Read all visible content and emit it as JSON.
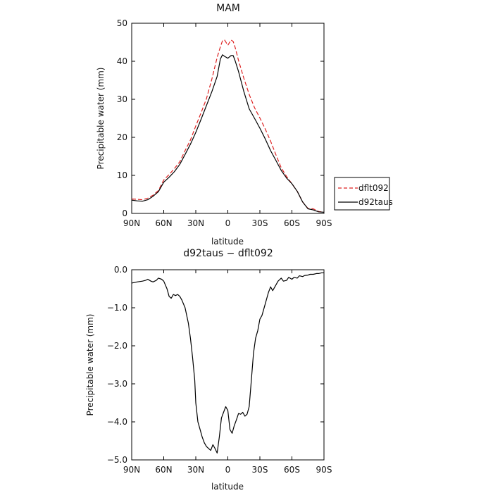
{
  "chart_data": [
    {
      "type": "line",
      "title": "MAM",
      "xlabel": "latitude",
      "ylabel": "Precipitable water (mm)",
      "x_tick_labels": [
        "90N",
        "60N",
        "30N",
        "0",
        "30S",
        "60S",
        "90S"
      ],
      "x_ticks": [
        90,
        60,
        30,
        0,
        -30,
        -60,
        -90
      ],
      "xlim": [
        90,
        -90
      ],
      "ylim": [
        0,
        50
      ],
      "y_ticks": [
        0,
        10,
        20,
        30,
        40,
        50
      ],
      "y_tick_labels": [
        "0",
        "10",
        "20",
        "30",
        "40",
        "50"
      ],
      "legend": "right-bottom",
      "series": [
        {
          "name": "dflt092",
          "color": "#dd2222",
          "dash": "dashed",
          "x": [
            90,
            85,
            80,
            75,
            70,
            65,
            60,
            55,
            50,
            45,
            40,
            35,
            30,
            25,
            20,
            15,
            10,
            7,
            5,
            3,
            0,
            -3,
            -5,
            -7,
            -10,
            -15,
            -20,
            -25,
            -30,
            -35,
            -40,
            -45,
            -50,
            -55,
            -60,
            -65,
            -70,
            -75,
            -80,
            -85,
            -90
          ],
          "values": [
            3.8,
            3.7,
            3.6,
            4.0,
            4.8,
            6.0,
            8.8,
            10.2,
            11.8,
            13.6,
            16.5,
            19.3,
            23.0,
            26.5,
            30.2,
            35.3,
            41.0,
            43.8,
            45.4,
            45.6,
            44.2,
            45.6,
            45.2,
            43.5,
            40.2,
            35.5,
            31.3,
            27.8,
            25.1,
            22.2,
            19.0,
            15.4,
            12.0,
            9.7,
            7.8,
            5.8,
            3.0,
            1.3,
            1.2,
            0.5,
            0.3
          ]
        },
        {
          "name": "d92taus",
          "color": "#000000",
          "dash": "solid",
          "x": [
            90,
            85,
            80,
            75,
            70,
            65,
            60,
            55,
            50,
            45,
            40,
            35,
            30,
            25,
            20,
            15,
            10,
            7,
            5,
            3,
            0,
            -3,
            -5,
            -7,
            -10,
            -15,
            -20,
            -25,
            -30,
            -35,
            -40,
            -45,
            -50,
            -55,
            -60,
            -65,
            -70,
            -75,
            -80,
            -85,
            -90
          ],
          "values": [
            3.5,
            3.3,
            3.2,
            3.6,
            4.5,
            5.7,
            8.2,
            9.5,
            11.0,
            12.9,
            15.5,
            18.2,
            21.3,
            24.8,
            28.4,
            32.0,
            36.0,
            40.6,
            41.7,
            41.3,
            40.8,
            41.5,
            41.5,
            40.0,
            37.3,
            32.0,
            27.5,
            25.0,
            22.4,
            19.6,
            16.5,
            13.9,
            11.3,
            9.3,
            7.8,
            5.8,
            3.0,
            1.2,
            0.9,
            0.4,
            0.3
          ]
        }
      ]
    },
    {
      "type": "line",
      "title": "d92taus − dflt092",
      "xlabel": "latitude",
      "ylabel": "Precipitable water (mm)",
      "x_tick_labels": [
        "90N",
        "60N",
        "30N",
        "0",
        "30S",
        "60S",
        "90S"
      ],
      "x_ticks": [
        90,
        60,
        30,
        0,
        -30,
        -60,
        -90
      ],
      "xlim": [
        90,
        -90
      ],
      "ylim": [
        -5.0,
        0.0
      ],
      "y_ticks": [
        0,
        -1,
        -2,
        -3,
        -4,
        -5
      ],
      "y_tick_labels": [
        "0.0",
        "−1.0",
        "−2.0",
        "−3.0",
        "−4.0",
        "−5.0"
      ],
      "series": [
        {
          "color": "#000000",
          "dash": "solid",
          "x": [
            90,
            85,
            80,
            77,
            75,
            72,
            70,
            67,
            65,
            62,
            60,
            57,
            55,
            53,
            51,
            49,
            47,
            45,
            43,
            40,
            37,
            35,
            33,
            31,
            30,
            28,
            26,
            24,
            22,
            20,
            18,
            16,
            14,
            12,
            10,
            8,
            6,
            4,
            2,
            0,
            -2,
            -4,
            -6,
            -8,
            -10,
            -12,
            -14,
            -16,
            -18,
            -20,
            -22,
            -24,
            -26,
            -28,
            -30,
            -32,
            -35,
            -38,
            -40,
            -42,
            -45,
            -47,
            -50,
            -52,
            -55,
            -57,
            -60,
            -62,
            -65,
            -67,
            -70,
            -72,
            -75,
            -77,
            -80,
            -83,
            -85,
            -88,
            -90
          ],
          "values": [
            -0.35,
            -0.32,
            -0.3,
            -0.28,
            -0.25,
            -0.3,
            -0.32,
            -0.28,
            -0.22,
            -0.25,
            -0.3,
            -0.5,
            -0.7,
            -0.75,
            -0.65,
            -0.68,
            -0.65,
            -0.7,
            -0.8,
            -1.0,
            -1.4,
            -1.8,
            -2.3,
            -2.9,
            -3.5,
            -4.0,
            -4.2,
            -4.4,
            -4.55,
            -4.65,
            -4.7,
            -4.75,
            -4.6,
            -4.7,
            -4.82,
            -4.4,
            -3.9,
            -3.75,
            -3.6,
            -3.7,
            -4.2,
            -4.3,
            -4.1,
            -3.95,
            -3.78,
            -3.8,
            -3.75,
            -3.85,
            -3.8,
            -3.6,
            -2.9,
            -2.2,
            -1.8,
            -1.6,
            -1.3,
            -1.2,
            -0.9,
            -0.6,
            -0.45,
            -0.55,
            -0.4,
            -0.3,
            -0.22,
            -0.3,
            -0.28,
            -0.2,
            -0.25,
            -0.2,
            -0.22,
            -0.16,
            -0.18,
            -0.15,
            -0.14,
            -0.12,
            -0.12,
            -0.1,
            -0.1,
            -0.08,
            -0.08
          ]
        }
      ]
    }
  ]
}
